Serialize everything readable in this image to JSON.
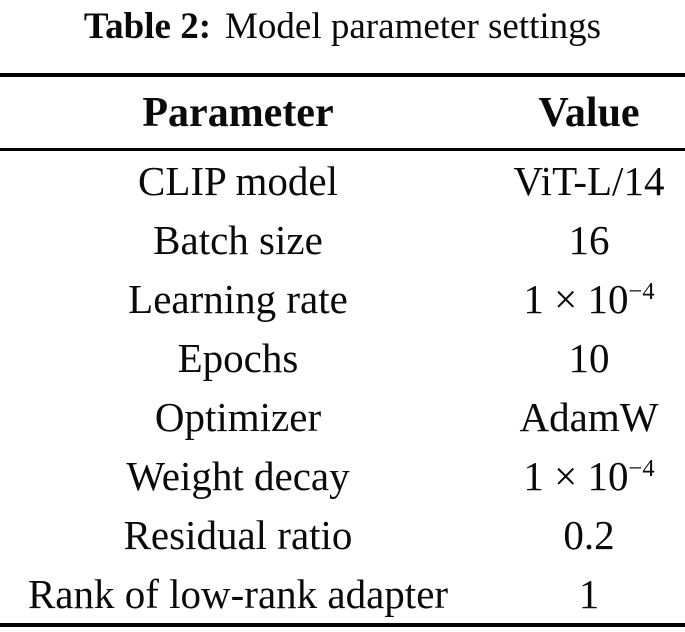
{
  "caption": {
    "label": "Table 2:",
    "title": "Model parameter settings"
  },
  "table": {
    "headers": {
      "parameter": "Parameter",
      "value": "Value"
    },
    "rows": [
      {
        "param": "CLIP model",
        "value_base": "ViT-L/14",
        "value_sup": ""
      },
      {
        "param": "Batch size",
        "value_base": "16",
        "value_sup": ""
      },
      {
        "param": "Learning rate",
        "value_base": "1 × 10",
        "value_sup": "−4"
      },
      {
        "param": "Epochs",
        "value_base": "10",
        "value_sup": ""
      },
      {
        "param": "Optimizer",
        "value_base": "AdamW",
        "value_sup": ""
      },
      {
        "param": "Weight decay",
        "value_base": "1 × 10",
        "value_sup": "−4"
      },
      {
        "param": "Residual ratio",
        "value_base": "0.2",
        "value_sup": ""
      },
      {
        "param": "Rank of low-rank adapter",
        "value_base": "1",
        "value_sup": ""
      }
    ]
  },
  "colors": {
    "background": "#ffffff",
    "text": "#0a0a0a",
    "rule": "#000000"
  }
}
